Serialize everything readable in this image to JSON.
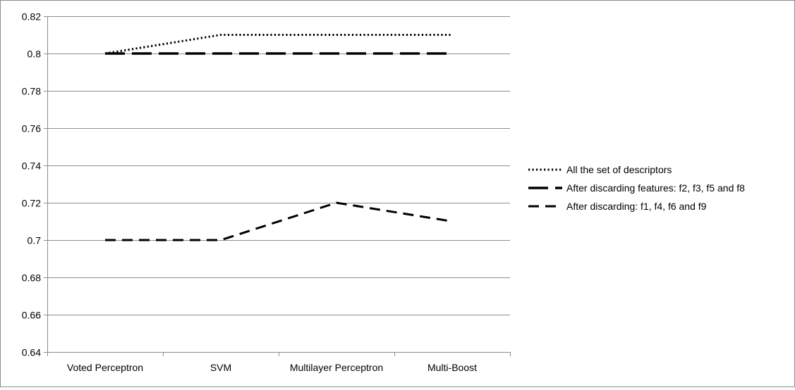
{
  "chart_data": {
    "type": "line",
    "title": "",
    "xlabel": "",
    "ylabel": "",
    "categories": [
      "Voted Perceptron",
      "SVM",
      "Multilayer Perceptron",
      "Multi-Boost"
    ],
    "ylim": [
      0.64,
      0.82
    ],
    "yticks": [
      0.64,
      0.66,
      0.68,
      0.7,
      0.72,
      0.74,
      0.76,
      0.78,
      0.8,
      0.82
    ],
    "ytick_labels": [
      "0.64",
      "0.66",
      "0.68",
      "0.7",
      "0.72",
      "0.74",
      "0.76",
      "0.78",
      "0.8",
      "0.82"
    ],
    "grid": true,
    "legend_position": "right",
    "series": [
      {
        "name": "All the set of descriptors",
        "values": [
          0.8,
          0.81,
          0.81,
          0.81
        ],
        "style": "dotted",
        "color": "#000000"
      },
      {
        "name": "After discarding features: f2, f3, f5 and f8",
        "values": [
          0.8,
          0.8,
          0.8,
          0.8
        ],
        "style": "long-dash",
        "color": "#000000"
      },
      {
        "name": "After discarding: f1, f4, f6 and f9",
        "values": [
          0.7,
          0.7,
          0.72,
          0.71
        ],
        "style": "dash",
        "color": "#000000"
      }
    ]
  }
}
